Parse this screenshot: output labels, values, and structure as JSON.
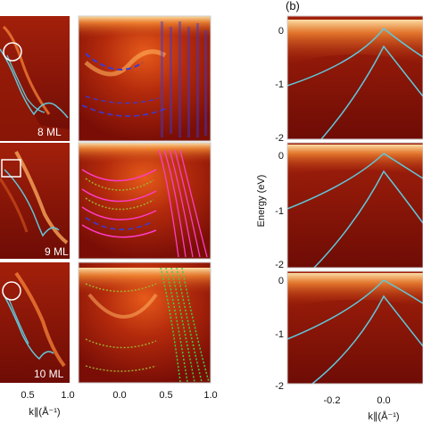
{
  "figure": {
    "panel_b_label": "(b)",
    "left_panels": [
      {
        "thickness": "8 ML"
      },
      {
        "thickness": "9 ML"
      },
      {
        "thickness": "10 ML"
      }
    ],
    "x_axis_label": "k∥(Å⁻¹)",
    "y_axis_label": "Energy (eV)",
    "col1_x_ticks": [
      "0.5",
      "1.0"
    ],
    "col2_x_ticks": [
      "0.0",
      "0.5",
      "1.0"
    ],
    "right_x_ticks": [
      "-0.2",
      "0.0"
    ],
    "right_y_ticks": [
      "0",
      "-1",
      "-2"
    ],
    "colors": {
      "background": "#8a1208",
      "band_highlight": "#ffd070",
      "cyan_curve": "#5fc8dc",
      "blue_dash": "#3a3ad8",
      "magenta_curve": "#ff3cc8",
      "green_dots": "#40d040",
      "olive_dots": "#a0b030"
    }
  }
}
